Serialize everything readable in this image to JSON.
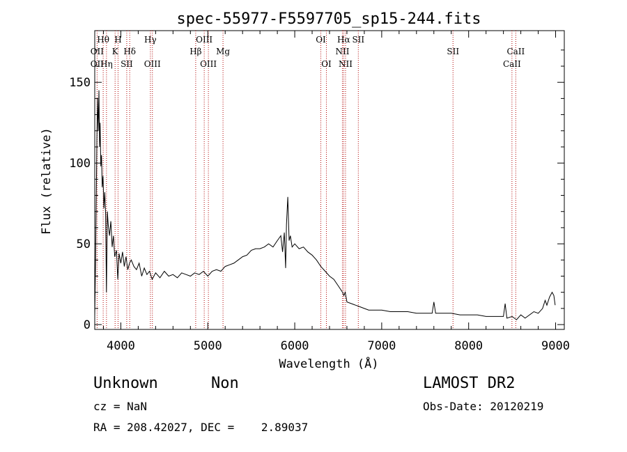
{
  "chart_data": {
    "type": "line",
    "title": "spec-55977-F5597705_sp15-244.fits",
    "xlabel": "Wavelength (Å)",
    "ylabel": "Flux (relative)",
    "xlim": [
      3700,
      9100
    ],
    "ylim": [
      -3,
      182
    ],
    "xticks": [
      4000,
      5000,
      6000,
      7000,
      8000,
      9000
    ],
    "yticks": [
      0,
      50,
      100,
      150
    ],
    "grid": false,
    "series": [
      {
        "color": "#000000",
        "points": [
          [
            3700,
            5
          ],
          [
            3710,
            40
          ],
          [
            3718,
            80
          ],
          [
            3725,
            115
          ],
          [
            3732,
            140
          ],
          [
            3740,
            120
          ],
          [
            3748,
            145
          ],
          [
            3755,
            110
          ],
          [
            3762,
            125
          ],
          [
            3770,
            98
          ],
          [
            3778,
            105
          ],
          [
            3786,
            85
          ],
          [
            3795,
            92
          ],
          [
            3805,
            72
          ],
          [
            3815,
            82
          ],
          [
            3825,
            68
          ],
          [
            3835,
            20
          ],
          [
            3845,
            70
          ],
          [
            3855,
            62
          ],
          [
            3870,
            55
          ],
          [
            3885,
            64
          ],
          [
            3900,
            48
          ],
          [
            3915,
            55
          ],
          [
            3930,
            42
          ],
          [
            3950,
            46
          ],
          [
            3965,
            28
          ],
          [
            3980,
            44
          ],
          [
            4000,
            38
          ],
          [
            4020,
            45
          ],
          [
            4040,
            36
          ],
          [
            4060,
            42
          ],
          [
            4080,
            34
          ],
          [
            4100,
            38
          ],
          [
            4120,
            40
          ],
          [
            4150,
            36
          ],
          [
            4180,
            34
          ],
          [
            4210,
            38
          ],
          [
            4240,
            30
          ],
          [
            4270,
            35
          ],
          [
            4300,
            31
          ],
          [
            4330,
            33
          ],
          [
            4360,
            28
          ],
          [
            4400,
            32
          ],
          [
            4450,
            29
          ],
          [
            4500,
            33
          ],
          [
            4550,
            30
          ],
          [
            4600,
            31
          ],
          [
            4650,
            29
          ],
          [
            4700,
            32
          ],
          [
            4750,
            31
          ],
          [
            4800,
            30
          ],
          [
            4850,
            32
          ],
          [
            4900,
            31
          ],
          [
            4950,
            33
          ],
          [
            5000,
            30
          ],
          [
            5050,
            33
          ],
          [
            5100,
            34
          ],
          [
            5150,
            33
          ],
          [
            5200,
            36
          ],
          [
            5250,
            37
          ],
          [
            5300,
            38
          ],
          [
            5350,
            40
          ],
          [
            5400,
            42
          ],
          [
            5450,
            43
          ],
          [
            5500,
            46
          ],
          [
            5550,
            47
          ],
          [
            5600,
            47
          ],
          [
            5650,
            48
          ],
          [
            5700,
            50
          ],
          [
            5750,
            48
          ],
          [
            5800,
            52
          ],
          [
            5840,
            55
          ],
          [
            5860,
            45
          ],
          [
            5880,
            57
          ],
          [
            5895,
            35
          ],
          [
            5905,
            62
          ],
          [
            5920,
            79
          ],
          [
            5935,
            52
          ],
          [
            5950,
            55
          ],
          [
            5970,
            48
          ],
          [
            6000,
            50
          ],
          [
            6050,
            47
          ],
          [
            6100,
            48
          ],
          [
            6150,
            45
          ],
          [
            6200,
            43
          ],
          [
            6250,
            40
          ],
          [
            6300,
            36
          ],
          [
            6350,
            33
          ],
          [
            6400,
            30
          ],
          [
            6450,
            28
          ],
          [
            6500,
            24
          ],
          [
            6550,
            20
          ],
          [
            6565,
            18
          ],
          [
            6580,
            20
          ],
          [
            6600,
            14
          ],
          [
            6650,
            13
          ],
          [
            6700,
            12
          ],
          [
            6750,
            11
          ],
          [
            6800,
            10
          ],
          [
            6850,
            9
          ],
          [
            6900,
            9
          ],
          [
            7000,
            9
          ],
          [
            7100,
            8
          ],
          [
            7200,
            8
          ],
          [
            7300,
            8
          ],
          [
            7400,
            7
          ],
          [
            7500,
            7
          ],
          [
            7580,
            7
          ],
          [
            7600,
            14
          ],
          [
            7620,
            7
          ],
          [
            7700,
            7
          ],
          [
            7800,
            7
          ],
          [
            7900,
            6
          ],
          [
            8000,
            6
          ],
          [
            8100,
            6
          ],
          [
            8200,
            5
          ],
          [
            8300,
            5
          ],
          [
            8400,
            5
          ],
          [
            8420,
            13
          ],
          [
            8440,
            4
          ],
          [
            8500,
            5
          ],
          [
            8550,
            3
          ],
          [
            8600,
            6
          ],
          [
            8650,
            4
          ],
          [
            8700,
            6
          ],
          [
            8750,
            8
          ],
          [
            8800,
            7
          ],
          [
            8850,
            10
          ],
          [
            8880,
            15
          ],
          [
            8900,
            12
          ],
          [
            8930,
            17
          ],
          [
            8960,
            20
          ],
          [
            8980,
            18
          ],
          [
            8995,
            12
          ]
        ]
      }
    ],
    "annotations": [
      {
        "label": "Hθ",
        "x": 3797,
        "row": 1
      },
      {
        "label": "H",
        "x": 3968,
        "row": 1
      },
      {
        "label": "Hγ",
        "x": 4340,
        "row": 1
      },
      {
        "label": "OIII",
        "x": 4959,
        "row": 1
      },
      {
        "label": "OI",
        "x": 6300,
        "row": 1
      },
      {
        "label": "Hα",
        "x": 6563,
        "row": 1
      },
      {
        "label": "SII",
        "x": 6731,
        "row": 1
      },
      {
        "label": "OII",
        "x": 3727,
        "row": 2
      },
      {
        "label": "K",
        "x": 3934,
        "row": 2
      },
      {
        "label": "Hδ",
        "x": 4102,
        "row": 2
      },
      {
        "label": "Hβ",
        "x": 4861,
        "row": 2
      },
      {
        "label": "Mg",
        "x": 5175,
        "row": 2
      },
      {
        "label": "NII",
        "x": 6548,
        "row": 2
      },
      {
        "label": "SII",
        "x": 7820,
        "row": 2
      },
      {
        "label": "CaII",
        "x": 8542,
        "row": 2
      },
      {
        "label": "OII",
        "x": 3727,
        "row": 3
      },
      {
        "label": "Hη",
        "x": 3835,
        "row": 3
      },
      {
        "label": "SII",
        "x": 4068,
        "row": 3
      },
      {
        "label": "OIII",
        "x": 4363,
        "row": 3
      },
      {
        "label": "OIII",
        "x": 5007,
        "row": 3
      },
      {
        "label": "OI",
        "x": 6364,
        "row": 3
      },
      {
        "label": "NII",
        "x": 6584,
        "row": 3
      },
      {
        "label": "CaII",
        "x": 8498,
        "row": 3
      }
    ],
    "line_markers": [
      3727,
      3797,
      3835,
      3934,
      3968,
      4068,
      4102,
      4340,
      4363,
      4861,
      4959,
      5007,
      5175,
      6300,
      6364,
      6548,
      6563,
      6584,
      6731,
      7820,
      8498,
      8542
    ]
  },
  "info": {
    "object_class": "Unknown",
    "subclass": "Non",
    "survey": "LAMOST DR2",
    "cz": "cz = NaN",
    "obs_date": "Obs-Date: 20120219",
    "coords": "RA = 208.42027, DEC =    2.89037"
  }
}
